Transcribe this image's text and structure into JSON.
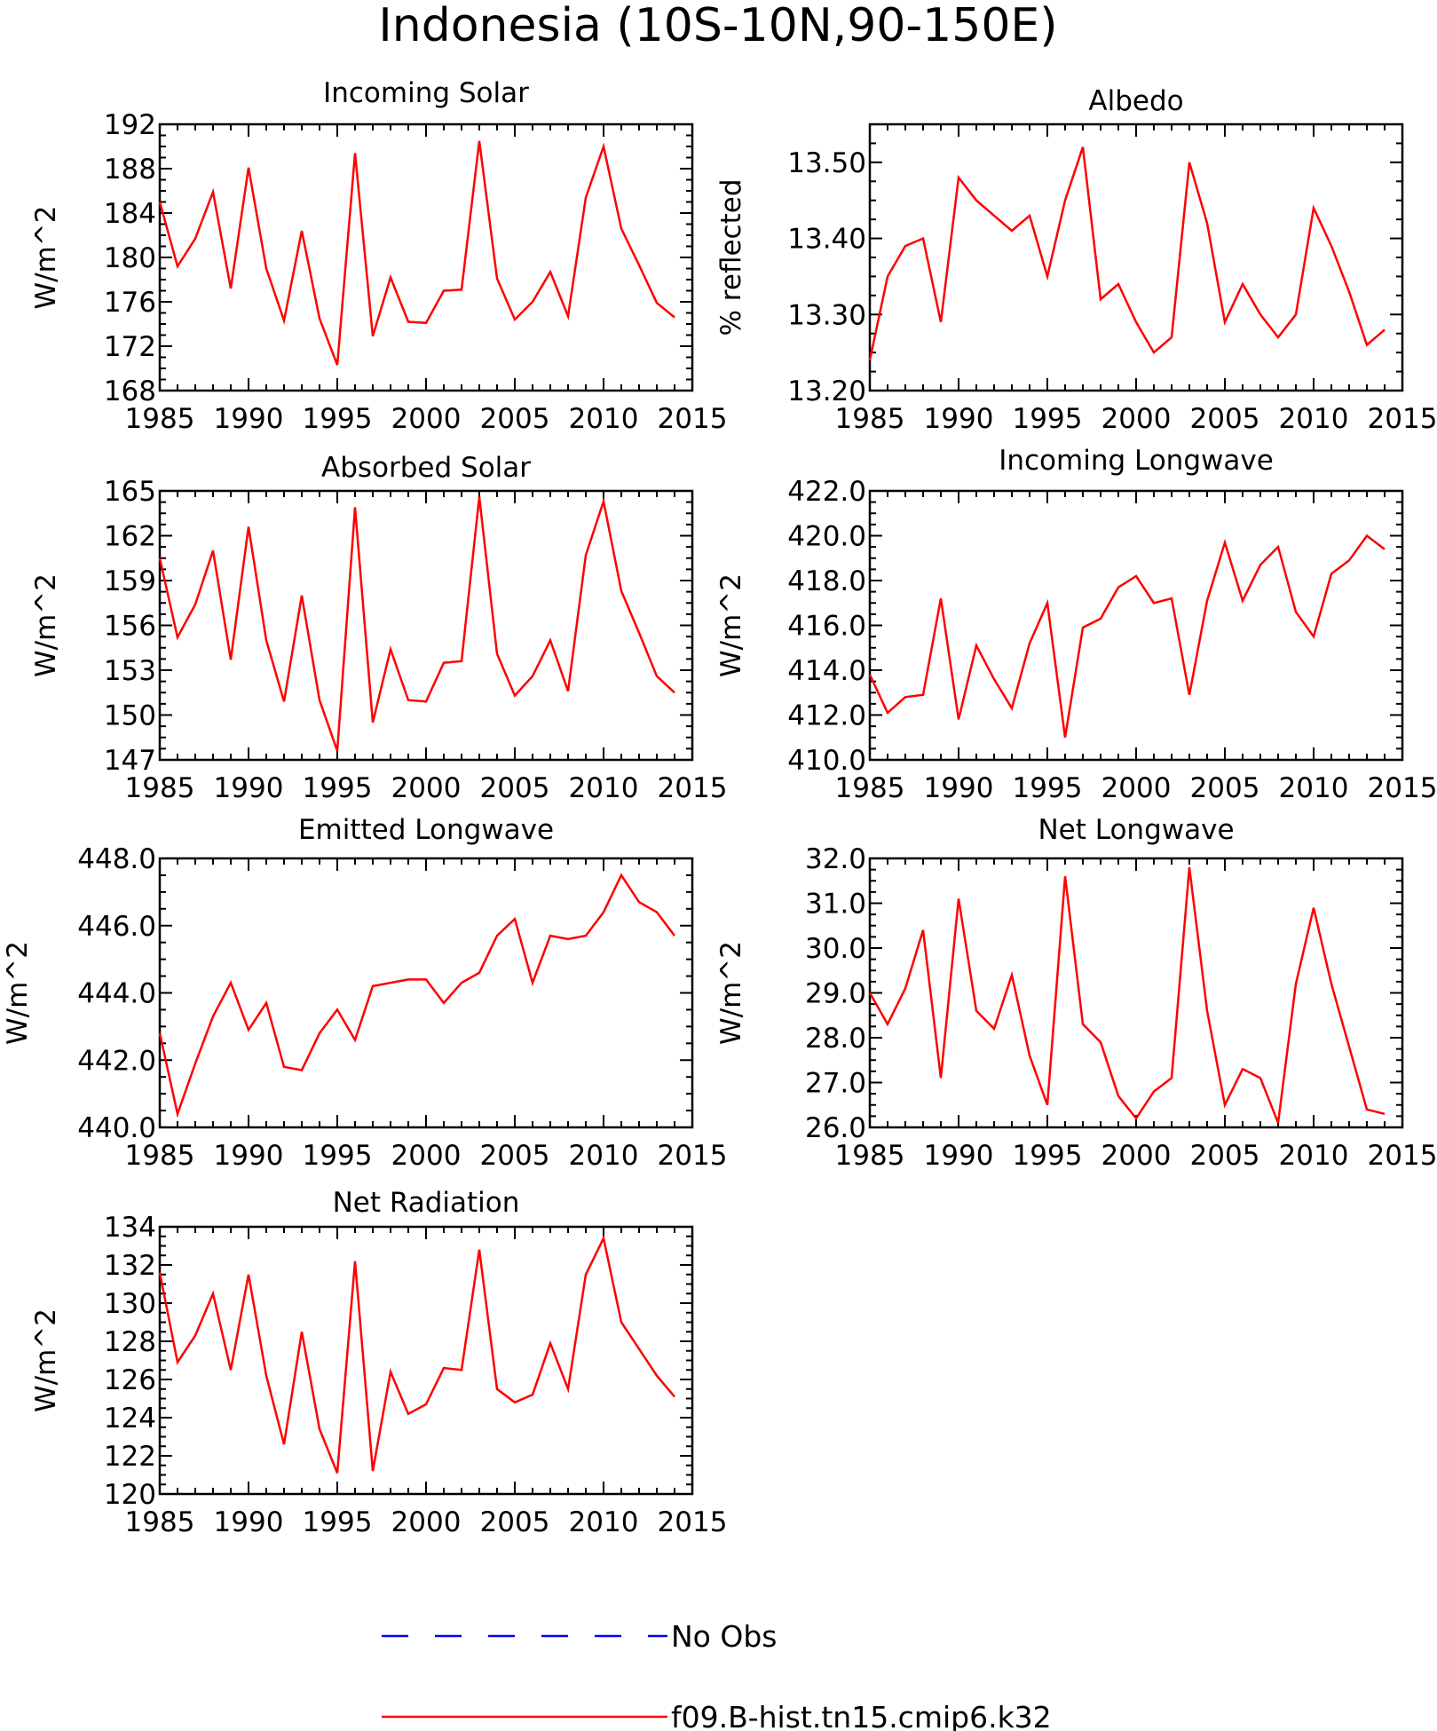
{
  "title": "Indonesia (10S-10N,90-150E)",
  "colors": {
    "model": "#ff0000",
    "obs": "#0000ff",
    "axis": "#000000"
  },
  "legend": {
    "obs_label": "No Obs",
    "model_label": "f09.B-hist.tn15.cmip6.k32"
  },
  "chart_data": [
    {
      "type": "line",
      "title": "Incoming Solar",
      "ylabel": "W/m^2",
      "xlim": [
        1985,
        2015
      ],
      "ylim": [
        168,
        192
      ],
      "xticks": [
        "1985",
        "1990",
        "1995",
        "2000",
        "2005",
        "2010",
        "2015"
      ],
      "yticks": [
        "168",
        "172",
        "176",
        "180",
        "184",
        "188",
        "192"
      ],
      "x": [
        1985,
        1986,
        1987,
        1988,
        1989,
        1990,
        1991,
        1992,
        1993,
        1994,
        1995,
        1996,
        1997,
        1998,
        1999,
        2000,
        2001,
        2002,
        2003,
        2004,
        2005,
        2006,
        2007,
        2008,
        2009,
        2010,
        2011,
        2012,
        2013,
        2014
      ],
      "values": [
        185.0,
        179.2,
        181.7,
        185.9,
        177.2,
        188.1,
        179.0,
        174.3,
        182.4,
        174.5,
        170.3,
        189.4,
        172.9,
        178.2,
        174.2,
        174.1,
        177.0,
        177.1,
        190.5,
        178.1,
        174.4,
        176.0,
        178.7,
        174.7,
        185.4,
        190.0,
        182.6,
        179.3,
        175.9,
        174.6
      ]
    },
    {
      "type": "line",
      "title": "Albedo",
      "ylabel": "% reflected",
      "xlim": [
        1985,
        2015
      ],
      "ylim": [
        13.2,
        13.55
      ],
      "xticks": [
        "1985",
        "1990",
        "1995",
        "2000",
        "2005",
        "2010",
        "2015"
      ],
      "yticks": [
        "13.20",
        "13.30",
        "13.40",
        "13.50"
      ],
      "x": [
        1985,
        1986,
        1987,
        1988,
        1989,
        1990,
        1991,
        1992,
        1993,
        1994,
        1995,
        1996,
        1997,
        1998,
        1999,
        2000,
        2001,
        2002,
        2003,
        2004,
        2005,
        2006,
        2007,
        2008,
        2009,
        2010,
        2011,
        2012,
        2013,
        2014
      ],
      "values": [
        13.24,
        13.35,
        13.39,
        13.4,
        13.29,
        13.48,
        13.45,
        13.43,
        13.41,
        13.43,
        13.35,
        13.45,
        13.52,
        13.32,
        13.34,
        13.29,
        13.25,
        13.27,
        13.5,
        13.42,
        13.29,
        13.34,
        13.3,
        13.27,
        13.3,
        13.44,
        13.39,
        13.33,
        13.26,
        13.28
      ]
    },
    {
      "type": "line",
      "title": "Absorbed Solar",
      "ylabel": "W/m^2",
      "xlim": [
        1985,
        2015
      ],
      "ylim": [
        147,
        165
      ],
      "xticks": [
        "1985",
        "1990",
        "1995",
        "2000",
        "2005",
        "2010",
        "2015"
      ],
      "yticks": [
        "147",
        "150",
        "153",
        "156",
        "159",
        "162",
        "165"
      ],
      "x": [
        1985,
        1986,
        1987,
        1988,
        1989,
        1990,
        1991,
        1992,
        1993,
        1994,
        1995,
        1996,
        1997,
        1998,
        1999,
        2000,
        2001,
        2002,
        2003,
        2004,
        2005,
        2006,
        2007,
        2008,
        2009,
        2010,
        2011,
        2012,
        2013,
        2014
      ],
      "values": [
        160.5,
        155.2,
        157.4,
        161.0,
        153.7,
        162.6,
        155.0,
        150.9,
        158.0,
        151.0,
        147.6,
        163.9,
        149.5,
        154.4,
        151.0,
        150.9,
        153.5,
        153.6,
        164.6,
        154.1,
        151.3,
        152.6,
        155.0,
        151.6,
        160.7,
        164.3,
        158.3,
        155.5,
        152.6,
        151.5
      ]
    },
    {
      "type": "line",
      "title": "Incoming Longwave",
      "ylabel": "W/m^2",
      "xlim": [
        1985,
        2015
      ],
      "ylim": [
        410,
        422
      ],
      "xticks": [
        "1985",
        "1990",
        "1995",
        "2000",
        "2005",
        "2010",
        "2015"
      ],
      "yticks": [
        "410.0",
        "412.0",
        "414.0",
        "416.0",
        "418.0",
        "420.0",
        "422.0"
      ],
      "x": [
        1985,
        1986,
        1987,
        1988,
        1989,
        1990,
        1991,
        1992,
        1993,
        1994,
        1995,
        1996,
        1997,
        1998,
        1999,
        2000,
        2001,
        2002,
        2003,
        2004,
        2005,
        2006,
        2007,
        2008,
        2009,
        2010,
        2011,
        2012,
        2013,
        2014
      ],
      "values": [
        413.8,
        412.1,
        412.8,
        412.9,
        417.2,
        411.8,
        415.1,
        413.6,
        412.3,
        415.2,
        417.0,
        411.0,
        415.9,
        416.3,
        417.7,
        418.2,
        417.0,
        417.2,
        412.9,
        417.1,
        419.7,
        417.1,
        418.7,
        419.5,
        416.6,
        415.5,
        418.3,
        418.9,
        420.0,
        419.4
      ]
    },
    {
      "type": "line",
      "title": "Emitted Longwave",
      "ylabel": "W/m^2",
      "xlim": [
        1985,
        2015
      ],
      "ylim": [
        440,
        448
      ],
      "xticks": [
        "1985",
        "1990",
        "1995",
        "2000",
        "2005",
        "2010",
        "2015"
      ],
      "yticks": [
        "440.0",
        "442.0",
        "444.0",
        "446.0",
        "448.0"
      ],
      "x": [
        1985,
        1986,
        1987,
        1988,
        1989,
        1990,
        1991,
        1992,
        1993,
        1994,
        1995,
        1996,
        1997,
        1998,
        1999,
        2000,
        2001,
        2002,
        2003,
        2004,
        2005,
        2006,
        2007,
        2008,
        2009,
        2010,
        2011,
        2012,
        2013,
        2014
      ],
      "values": [
        442.8,
        440.4,
        441.9,
        443.3,
        444.3,
        442.9,
        443.7,
        441.8,
        441.7,
        442.8,
        443.5,
        442.6,
        444.2,
        444.3,
        444.4,
        444.4,
        443.7,
        444.3,
        444.6,
        445.7,
        446.2,
        444.3,
        445.7,
        445.6,
        445.7,
        446.4,
        447.5,
        446.7,
        446.4,
        445.7
      ]
    },
    {
      "type": "line",
      "title": "Net Longwave",
      "ylabel": "W/m^2",
      "xlim": [
        1985,
        2015
      ],
      "ylim": [
        26,
        32
      ],
      "xticks": [
        "1985",
        "1990",
        "1995",
        "2000",
        "2005",
        "2010",
        "2015"
      ],
      "yticks": [
        "26.0",
        "27.0",
        "28.0",
        "29.0",
        "30.0",
        "31.0",
        "32.0"
      ],
      "x": [
        1985,
        1986,
        1987,
        1988,
        1989,
        1990,
        1991,
        1992,
        1993,
        1994,
        1995,
        1996,
        1997,
        1998,
        1999,
        2000,
        2001,
        2002,
        2003,
        2004,
        2005,
        2006,
        2007,
        2008,
        2009,
        2010,
        2011,
        2012,
        2013,
        2014
      ],
      "values": [
        29.0,
        28.3,
        29.1,
        30.4,
        27.1,
        31.1,
        28.6,
        28.2,
        29.4,
        27.6,
        26.5,
        31.6,
        28.3,
        27.9,
        26.7,
        26.2,
        26.8,
        27.1,
        31.8,
        28.6,
        26.5,
        27.3,
        27.1,
        26.1,
        29.2,
        30.9,
        29.2,
        27.8,
        26.4,
        26.3
      ]
    },
    {
      "type": "line",
      "title": "Net Radiation",
      "ylabel": "W/m^2",
      "xlim": [
        1985,
        2015
      ],
      "ylim": [
        120,
        134
      ],
      "xticks": [
        "1985",
        "1990",
        "1995",
        "2000",
        "2005",
        "2010",
        "2015"
      ],
      "yticks": [
        "120",
        "122",
        "124",
        "126",
        "128",
        "130",
        "132",
        "134"
      ],
      "x": [
        1985,
        1986,
        1987,
        1988,
        1989,
        1990,
        1991,
        1992,
        1993,
        1994,
        1995,
        1996,
        1997,
        1998,
        1999,
        2000,
        2001,
        2002,
        2003,
        2004,
        2005,
        2006,
        2007,
        2008,
        2009,
        2010,
        2011,
        2012,
        2013,
        2014
      ],
      "values": [
        131.6,
        126.9,
        128.3,
        130.5,
        126.5,
        131.5,
        126.2,
        122.6,
        128.5,
        123.4,
        121.1,
        132.2,
        121.2,
        126.4,
        124.2,
        124.7,
        126.6,
        126.5,
        132.8,
        125.5,
        124.8,
        125.2,
        127.9,
        125.5,
        131.5,
        133.4,
        129.0,
        127.6,
        126.2,
        125.1
      ]
    }
  ]
}
